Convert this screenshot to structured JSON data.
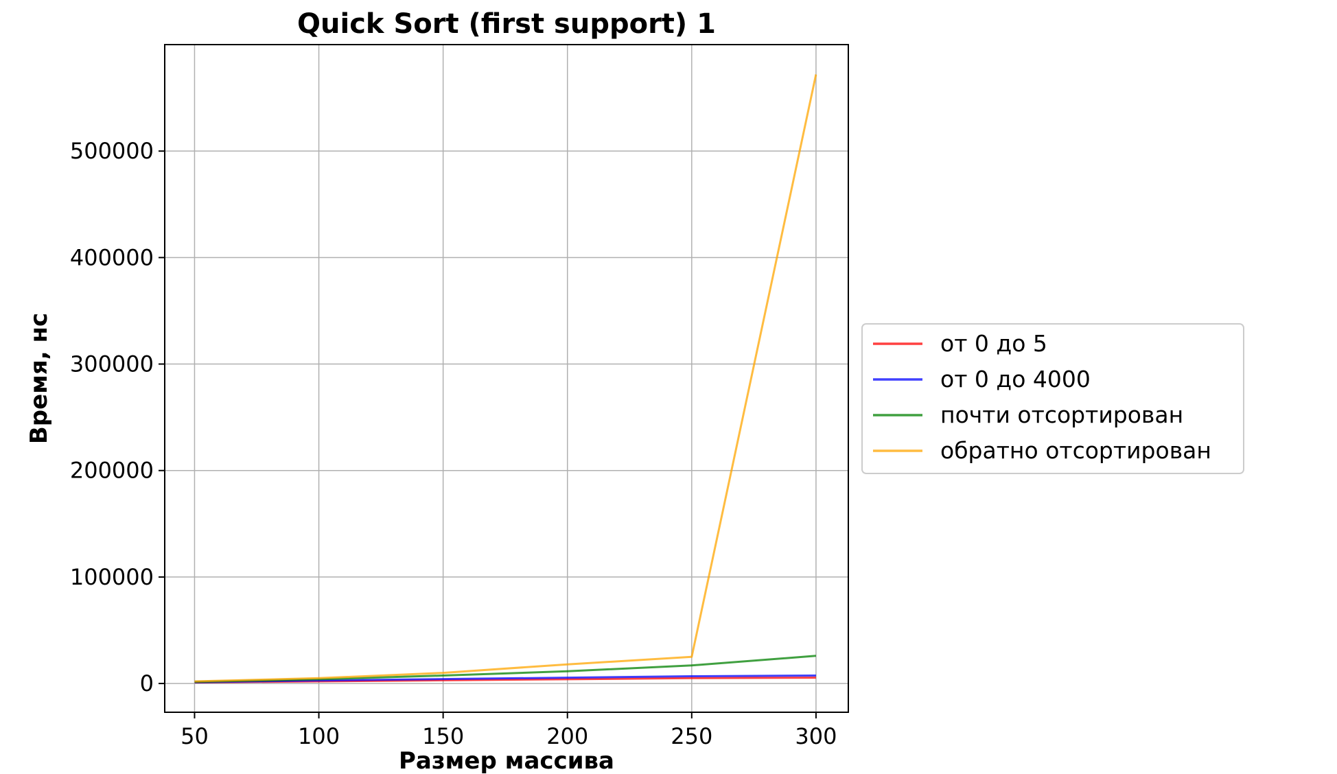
{
  "chart_data": {
    "type": "line",
    "title": "Quick Sort (first support) 1",
    "xlabel": "Размер массива",
    "ylabel": "Время, нс",
    "x": [
      50,
      100,
      150,
      200,
      250,
      300
    ],
    "xlim": [
      38,
      313
    ],
    "ylim": [
      -27000,
      600000
    ],
    "xticks": [
      50,
      100,
      150,
      200,
      250,
      300
    ],
    "yticks": [
      0,
      100000,
      200000,
      300000,
      400000,
      500000
    ],
    "grid": true,
    "legend_position": "outside-right",
    "series": [
      {
        "name": "от 0 до 5",
        "color": "#ff0000",
        "values": [
          1000,
          2000,
          3000,
          4000,
          5000,
          5500
        ]
      },
      {
        "name": "от 0 до 4000",
        "color": "#0000ff",
        "values": [
          1200,
          2800,
          4200,
          5500,
          6800,
          7500
        ]
      },
      {
        "name": "почти отсортирован",
        "color": "#008000",
        "values": [
          1500,
          4000,
          7500,
          11500,
          17000,
          26000
        ]
      },
      {
        "name": "обратно отсортирован",
        "color": "#ffa500",
        "values": [
          2000,
          5000,
          10000,
          18000,
          25000,
          572000
        ]
      }
    ]
  }
}
